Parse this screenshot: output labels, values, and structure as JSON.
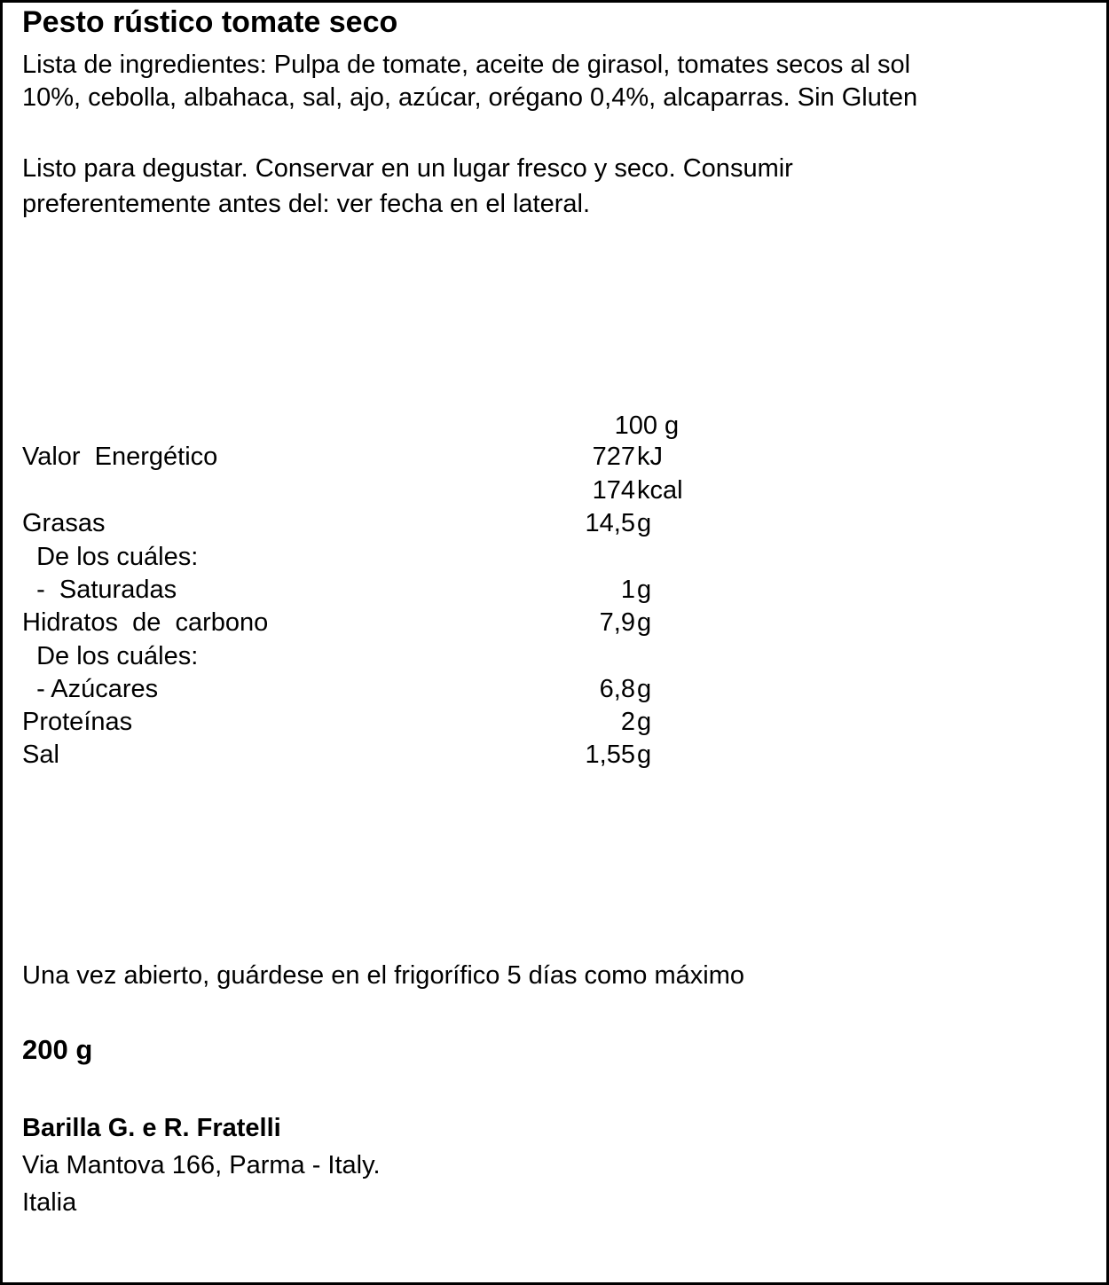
{
  "title": "Pesto rústico tomate seco",
  "ingredients": [
    "Lista de ingredientes: Pulpa de tomate, aceite de girasol, tomates secos al sol",
    "10%, cebolla, albahaca, sal, ajo, azúcar, orégano 0,4%, alcaparras. Sin Gluten"
  ],
  "storage": [
    "Listo para degustar. Conservar en un lugar fresco y seco. Consumir",
    "preferentemente antes del: ver fecha en el lateral."
  ],
  "nutrition": {
    "header": {
      "num": "100",
      "unit": "g"
    },
    "rows": [
      {
        "label": "Valor  Energético",
        "num": "727",
        "unit": "kJ"
      },
      {
        "label": "",
        "num": "174",
        "unit": "kcal"
      },
      {
        "label": "Grasas",
        "num": "14,5",
        "unit": "g"
      },
      {
        "label": "  De los cuáles:",
        "num": "",
        "unit": ""
      },
      {
        "label": "  -  Saturadas",
        "num": "1",
        "unit": "g"
      },
      {
        "label": "Hidratos  de  carbono",
        "num": "7,9",
        "unit": "g"
      },
      {
        "label": "  De los cuáles:",
        "num": "",
        "unit": ""
      },
      {
        "label": "  - Azúcares",
        "num": "6,8",
        "unit": "g"
      },
      {
        "label": "Proteínas",
        "num": "2",
        "unit": "g"
      },
      {
        "label": "Sal",
        "num": "1,55",
        "unit": "g"
      }
    ]
  },
  "after_opening": "Una vez abierto, guárdese en el frigorífico 5 días como máximo",
  "net_weight": "200 g",
  "manufacturer": {
    "name": "Barilla G. e R. Fratelli",
    "address": "Via Mantova 166, Parma - Italy.",
    "country": "Italia"
  }
}
